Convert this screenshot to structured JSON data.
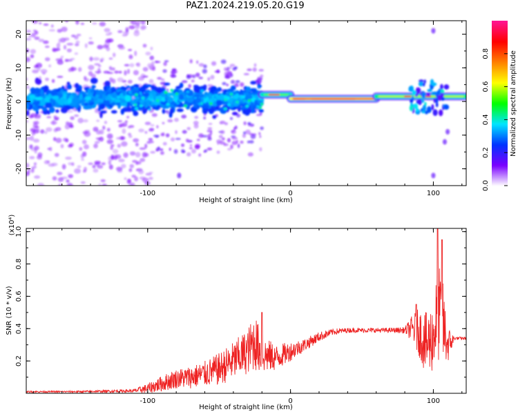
{
  "title": "PAZ1.2024.219.05.20.G19",
  "chart_data": [
    {
      "type": "heatmap",
      "xlabel": "Height of straight line (km)",
      "ylabel": "Frequency (Hz)",
      "xlim": [
        -185,
        123
      ],
      "ylim": [
        -25,
        24
      ],
      "xticks": [
        "-100",
        "0",
        "100"
      ],
      "xtick_values": [
        -100,
        0,
        100
      ],
      "yticks": [
        "20",
        "10",
        "0",
        "-10",
        "-20"
      ],
      "ytick_values": [
        20,
        10,
        0,
        -10,
        -20
      ],
      "colorbar": {
        "label": "Normalized spectral amplitude",
        "range": [
          0,
          1
        ],
        "ticks": [
          "0.0",
          "0.2",
          "0.4",
          "0.6",
          "0.8"
        ],
        "tick_values": [
          0.0,
          0.2,
          0.4,
          0.6,
          0.8
        ],
        "colors": [
          "#ffffff",
          "#7a00ff",
          "#0033ff",
          "#00e5ff",
          "#00ff00",
          "#ffff00",
          "#ff8000",
          "#ff0000",
          "#ff1493"
        ]
      },
      "ridge": {
        "segments": [
          {
            "x_start": -185,
            "x_end": -20,
            "freq_center": 0.8,
            "freq_spread": 6,
            "amplitude": 0.25
          },
          {
            "x_start": -20,
            "x_end": 0,
            "freq_center": 2.0,
            "amplitude": 0.55
          },
          {
            "x_start": 0,
            "x_end": 60,
            "freq_center": 0.8,
            "amplitude": 0.85
          },
          {
            "x_start": 60,
            "x_end": 123,
            "freq_center": 1.5,
            "amplitude": 0.6
          }
        ]
      },
      "scatter_region": {
        "x_start": -185,
        "x_end": -95,
        "freq_range": [
          -25,
          24
        ],
        "amplitude": 0.08
      }
    },
    {
      "type": "line",
      "xlabel": "Height of straight line (km)",
      "ylabel": "SNR (10 * v/v)",
      "y_scale_note": "(x10⁴)",
      "xlim": [
        -185,
        123
      ],
      "ylim": [
        0,
        1.02
      ],
      "xticks": [
        "-100",
        "0",
        "100"
      ],
      "xtick_values": [
        -100,
        0,
        100
      ],
      "yticks": [
        "0.2",
        "0.4",
        "0.6",
        "0.8",
        "1.0"
      ],
      "ytick_values": [
        0.2,
        0.4,
        0.6,
        0.8,
        1.0
      ],
      "line_color": "#ee2222",
      "series": [
        {
          "x": [
            -185,
            -150,
            -110,
            -100,
            -90,
            -80,
            -70,
            -60,
            -50,
            -40,
            -30,
            -25,
            -20,
            -10,
            0,
            10,
            20,
            30,
            40,
            50,
            60,
            70,
            80,
            85,
            90,
            95,
            100,
            103,
            106,
            110,
            115,
            123
          ],
          "y": [
            0.01,
            0.01,
            0.015,
            0.03,
            0.06,
            0.09,
            0.1,
            0.12,
            0.15,
            0.2,
            0.26,
            0.32,
            0.24,
            0.22,
            0.26,
            0.3,
            0.35,
            0.38,
            0.39,
            0.39,
            0.39,
            0.39,
            0.39,
            0.4,
            0.38,
            0.3,
            0.35,
            0.5,
            0.45,
            0.3,
            0.34,
            0.34
          ],
          "spread": [
            0.005,
            0.005,
            0.01,
            0.03,
            0.05,
            0.06,
            0.07,
            0.08,
            0.1,
            0.12,
            0.14,
            0.18,
            0.12,
            0.08,
            0.06,
            0.04,
            0.03,
            0.02,
            0.015,
            0.015,
            0.015,
            0.015,
            0.02,
            0.08,
            0.15,
            0.2,
            0.22,
            0.3,
            0.3,
            0.12,
            0.01,
            0.01
          ],
          "peaks": [
            {
              "x": -20,
              "y": 0.5
            },
            {
              "x": 88,
              "y": 0.55
            },
            {
              "x": 103,
              "y": 1.02
            },
            {
              "x": 106,
              "y": 0.95
            }
          ]
        }
      ]
    }
  ]
}
